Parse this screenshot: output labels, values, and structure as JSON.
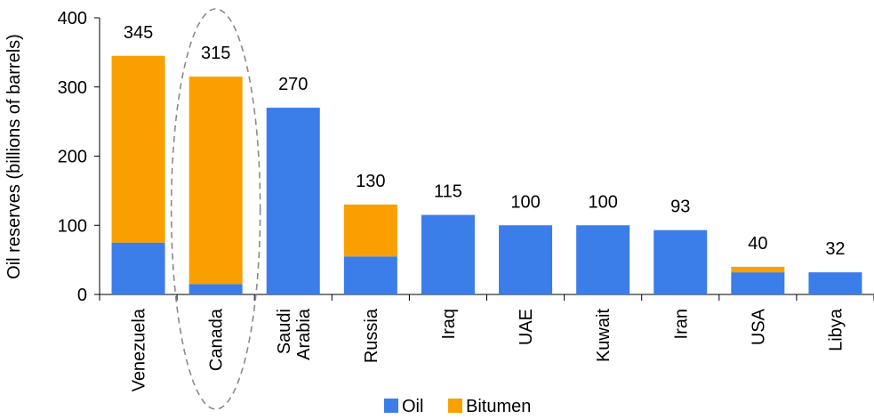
{
  "chart_data": {
    "type": "bar",
    "stacked": true,
    "categories": [
      "Venezuela",
      "Canada",
      "Saudi\nArabia",
      "Russia",
      "Iraq",
      "UAE",
      "Kuwait",
      "Iran",
      "USA",
      "Libya"
    ],
    "series": [
      {
        "name": "Oil",
        "color": "#3b7de9",
        "values": [
          75,
          15,
          270,
          55,
          115,
          100,
          100,
          93,
          32,
          32
        ]
      },
      {
        "name": "Bitumen",
        "color": "#f9a000",
        "values": [
          270,
          300,
          0,
          75,
          0,
          0,
          0,
          0,
          8,
          0
        ]
      }
    ],
    "totals": [
      "345",
      "315",
      "270",
      "130",
      "115",
      "100",
      "100",
      "93",
      "40",
      "32"
    ],
    "ylabel": "Oil reserves (billions of barrels)",
    "ylim": [
      0,
      400
    ],
    "yticks": [
      "0",
      "100",
      "200",
      "300",
      "400"
    ],
    "grid": false,
    "legend_position": "bottom",
    "highlight": {
      "category": "Canada",
      "style": "dashed-ellipse"
    }
  }
}
